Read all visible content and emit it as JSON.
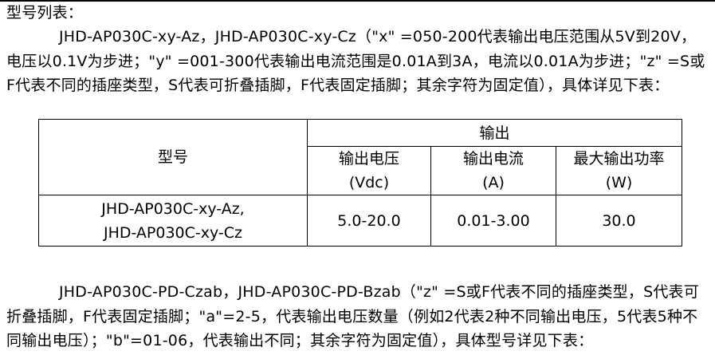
{
  "heading": "型号列表：",
  "paragraph1": "JHD-AP030C-xy-Az，JHD-AP030C-xy-Cz（\"x\" =050-200代表输出电压范围从5V到20V，电压以0.1V为步进；\"y\" =001-300代表输出电流范围是0.01A到3A，电流以0.01A为步进；\"z\" =S或F代表不同的插座类型，S代表可折叠插脚，F代表固定插脚；其余字符为固定值），具体详见下表：",
  "table": {
    "model_header": "型号",
    "output_header": "输出",
    "columns": [
      {
        "name": "输出电压",
        "unit": "(Vdc)"
      },
      {
        "name": "输出电流",
        "unit": "(A)"
      },
      {
        "name": "最大输出功率",
        "unit": "(W)"
      }
    ],
    "rows": [
      {
        "model_lines": [
          "JHD-AP030C-xy-Az,",
          "JHD-AP030C-xy-Cz"
        ],
        "voltage": "5.0-20.0",
        "current": "0.01-3.00",
        "power": "30.0"
      }
    ]
  },
  "paragraph2": "JHD-AP030C-PD-Czab，JHD-AP030C-PD-Bzab（\"z\" =S或F代表不同的插座类型，S代表可折叠插脚，F代表固定插脚；\"a\"=2-5，代表输出电压数量（例如2代表2种不同输出电压，5代表5种不同输出电压）；\"b\"=01-06，代表输出不同；其余字符为固定值），具体型号详见下表："
}
